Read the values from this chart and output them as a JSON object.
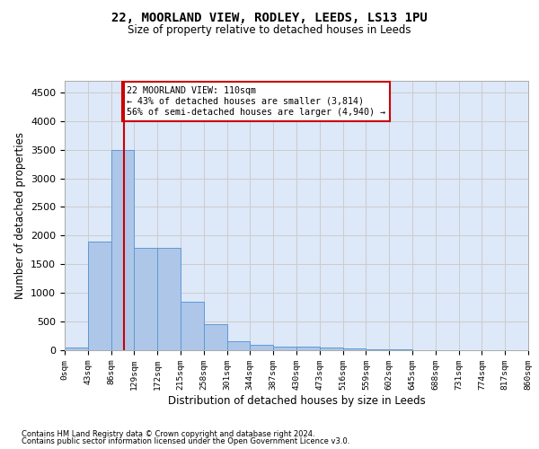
{
  "title": "22, MOORLAND VIEW, RODLEY, LEEDS, LS13 1PU",
  "subtitle": "Size of property relative to detached houses in Leeds",
  "xlabel": "Distribution of detached houses by size in Leeds",
  "ylabel": "Number of detached properties",
  "bin_edges": [
    0,
    43,
    86,
    129,
    172,
    215,
    258,
    301,
    344,
    387,
    430,
    473,
    516,
    559,
    602,
    645,
    688,
    731,
    774,
    817,
    860
  ],
  "bar_heights": [
    50,
    1900,
    3500,
    1780,
    1780,
    840,
    450,
    160,
    100,
    70,
    55,
    40,
    25,
    10,
    8,
    5,
    4,
    3,
    2,
    1
  ],
  "bar_color": "#aec6e8",
  "bar_edge_color": "#5b9bd5",
  "grid_color": "#cccccc",
  "background_color": "#dde8f8",
  "property_size": 110,
  "vline_color": "#cc0000",
  "annotation_text": "22 MOORLAND VIEW: 110sqm\n← 43% of detached houses are smaller (3,814)\n56% of semi-detached houses are larger (4,940) →",
  "annotation_box_color": "#ffffff",
  "annotation_box_edge": "#cc0000",
  "ylim": [
    0,
    4700
  ],
  "yticks": [
    0,
    500,
    1000,
    1500,
    2000,
    2500,
    3000,
    3500,
    4000,
    4500
  ],
  "footer_line1": "Contains HM Land Registry data © Crown copyright and database right 2024.",
  "footer_line2": "Contains public sector information licensed under the Open Government Licence v3.0."
}
